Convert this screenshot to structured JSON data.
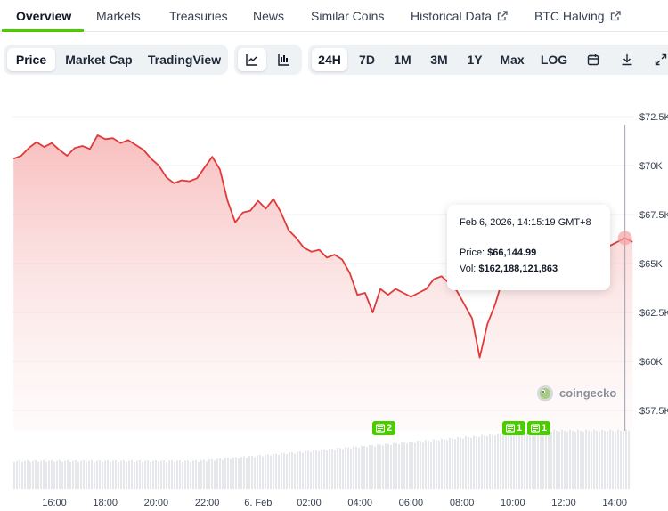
{
  "tabs": [
    {
      "label": "Overview"
    },
    {
      "label": "Markets"
    },
    {
      "label": "Treasuries"
    },
    {
      "label": "News"
    },
    {
      "label": "Similar Coins"
    },
    {
      "label": "Historical Data"
    },
    {
      "label": "BTC Halving"
    }
  ],
  "chart_type_tabs": [
    {
      "label": "Price"
    },
    {
      "label": "Market Cap"
    },
    {
      "label": "TradingView"
    }
  ],
  "view_icons": [
    "line-chart-icon",
    "candlestick-icon"
  ],
  "ranges": [
    {
      "label": "24H"
    },
    {
      "label": "7D"
    },
    {
      "label": "1M"
    },
    {
      "label": "3M"
    },
    {
      "label": "1Y"
    },
    {
      "label": "Max"
    },
    {
      "label": "LOG"
    }
  ],
  "tool_icons": [
    "calendar-icon",
    "download-icon",
    "expand-icon"
  ],
  "tooltip": {
    "date": "Feb 6, 2026, 14:15:19 GMT+8",
    "price_label": "Price:",
    "price_value": "$66,144.99",
    "vol_label": "Vol:",
    "vol_value": "$162,188,121,863"
  },
  "watermark": "coingecko",
  "badges": [
    {
      "count": "2"
    },
    {
      "count": "1"
    },
    {
      "count": "1"
    }
  ],
  "colors": {
    "accent": "#4bcc00",
    "price_line": "#e03a3a",
    "area_fill": "#f8c9c9",
    "volume_bar": "#e5e7eb"
  },
  "chart_data": {
    "type": "area",
    "x_tick_labels": [
      "16:00",
      "18:00",
      "20:00",
      "22:00",
      "6. Feb",
      "02:00",
      "04:00",
      "06:00",
      "08:00",
      "10:00",
      "12:00",
      "14:00"
    ],
    "y_tick_labels": [
      "$72.5K",
      "$70K",
      "$67.5K",
      "$65K",
      "$62.5K",
      "$60K",
      "$57.5K"
    ],
    "ylim": [
      57500,
      72500
    ],
    "x_hours_from_16": [
      -1.6,
      -1.3,
      -1.0,
      -0.7,
      -0.4,
      -0.1,
      0.2,
      0.5,
      0.8,
      1.1,
      1.4,
      1.7,
      2.0,
      2.3,
      2.6,
      2.9,
      3.2,
      3.5,
      3.8,
      4.1,
      4.4,
      4.7,
      5.0,
      5.3,
      5.6,
      5.9,
      6.2,
      6.5,
      6.8,
      7.1,
      7.4,
      7.7,
      8.0,
      8.3,
      8.6,
      8.9,
      9.2,
      9.5,
      9.8,
      10.1,
      10.4,
      10.7,
      11.0,
      11.3,
      11.6,
      11.9,
      12.2,
      12.5,
      12.8,
      13.1,
      13.4,
      13.7,
      14.0,
      14.3,
      14.6,
      14.9,
      15.2,
      15.5,
      15.8,
      16.1,
      16.4,
      16.7,
      17.0,
      17.3,
      17.6,
      17.9,
      18.2,
      18.5,
      18.8,
      19.1,
      19.4,
      19.7,
      20.0,
      20.3,
      20.6,
      20.9,
      21.2,
      21.5,
      21.8,
      22.1,
      22.4,
      22.7
    ],
    "price": [
      70350,
      70500,
      70900,
      71200,
      70950,
      71150,
      70800,
      70500,
      70900,
      71000,
      70850,
      71550,
      71350,
      71400,
      71150,
      71300,
      71050,
      70800,
      70350,
      70000,
      69400,
      69100,
      69250,
      69200,
      69350,
      69900,
      70450,
      69800,
      68200,
      67100,
      67600,
      67700,
      68200,
      67800,
      68300,
      67600,
      66700,
      66300,
      65800,
      65600,
      65700,
      65300,
      65450,
      65200,
      64500,
      63400,
      63500,
      62500,
      63700,
      63400,
      63700,
      63500,
      63300,
      63500,
      63700,
      64200,
      64350,
      64000,
      63600,
      62900,
      62200,
      60200,
      61900,
      62900,
      64200,
      65100,
      65700,
      65800,
      65950,
      66100,
      65800,
      65500,
      65200,
      65400,
      65700,
      65400,
      65900,
      65600,
      65900,
      66100,
      66300,
      66100
    ]
  }
}
